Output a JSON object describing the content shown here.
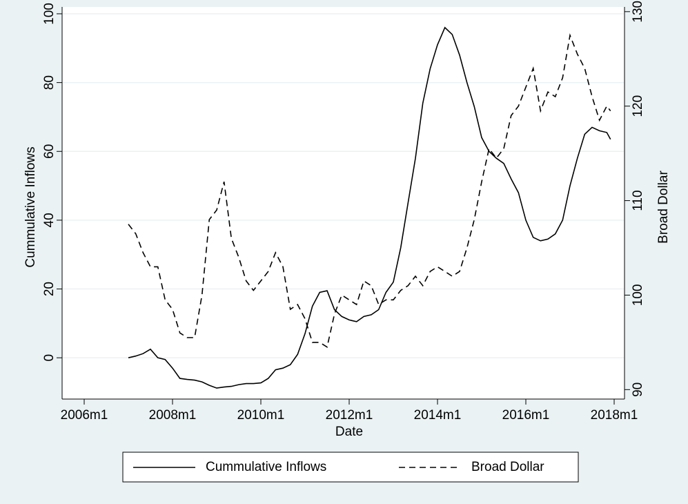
{
  "chart_data": {
    "type": "line",
    "xlabel": "Date",
    "ylabel": "Cummulative Inflows",
    "y2label": "Broad Dollar",
    "x": [
      "2007m1",
      "2007m3",
      "2007m5",
      "2007m7",
      "2007m9",
      "2007m11",
      "2008m1",
      "2008m3",
      "2008m5",
      "2008m7",
      "2008m9",
      "2008m11",
      "2009m1",
      "2009m3",
      "2009m5",
      "2009m7",
      "2009m9",
      "2009m11",
      "2010m1",
      "2010m3",
      "2010m5",
      "2010m7",
      "2010m9",
      "2010m11",
      "2011m1",
      "2011m3",
      "2011m5",
      "2011m7",
      "2011m9",
      "2011m11",
      "2012m1",
      "2012m3",
      "2012m5",
      "2012m7",
      "2012m9",
      "2012m11",
      "2013m1",
      "2013m3",
      "2013m5",
      "2013m7",
      "2013m9",
      "2013m11",
      "2014m1",
      "2014m3",
      "2014m5",
      "2014m7",
      "2014m9",
      "2014m11",
      "2015m1",
      "2015m3",
      "2015m5",
      "2015m7",
      "2015m9",
      "2015m11",
      "2016m1",
      "2016m3",
      "2016m5",
      "2016m7",
      "2016m9",
      "2016m11",
      "2017m1",
      "2017m3",
      "2017m5",
      "2017m7",
      "2017m9",
      "2017m11",
      "2017m12"
    ],
    "series": [
      {
        "name": "Cummulative Inflows",
        "color": "#000000",
        "dash": "solid",
        "axis": "y",
        "values": [
          0,
          0.5,
          1.2,
          2.5,
          0,
          -0.5,
          -3,
          -6,
          -6.3,
          -6.5,
          -7,
          -8,
          -8.8,
          -8.5,
          -8.3,
          -7.8,
          -7.5,
          -7.5,
          -7.3,
          -6,
          -3.5,
          -3,
          -2,
          1,
          7,
          15,
          19,
          19.5,
          14,
          12,
          11,
          10.5,
          12,
          12.5,
          14,
          19,
          22,
          32,
          45,
          58,
          74,
          84,
          91,
          96,
          94,
          88,
          80,
          73,
          64,
          60,
          58,
          56.5,
          52,
          48,
          40,
          35,
          34,
          34.5,
          36,
          40,
          50,
          58,
          65,
          67,
          66,
          65.5,
          63.5
        ]
      },
      {
        "name": "Broad Dollar",
        "color": "#000000",
        "dash": "dashed",
        "axis": "y2",
        "values": [
          107.5,
          106.5,
          104.5,
          103,
          103,
          99.5,
          98.5,
          96,
          95.5,
          95.5,
          100,
          108,
          109,
          112,
          106,
          104,
          101.5,
          100.5,
          101.5,
          102.5,
          104.5,
          103,
          98.5,
          99,
          97.5,
          95,
          95,
          94.5,
          98,
          100,
          99.5,
          99,
          101.5,
          101,
          99,
          99.5,
          99.5,
          100.5,
          101,
          102,
          101,
          102.5,
          103,
          102.5,
          102,
          102.5,
          105,
          108,
          112,
          115.5,
          114.5,
          115.5,
          119,
          120,
          122,
          124,
          119.5,
          121.5,
          121,
          123,
          127.5,
          125.5,
          124,
          121,
          118.5,
          120,
          119.5
        ]
      }
    ],
    "xlim": [
      "2006m1",
      "2018m1"
    ],
    "xticks": [
      "2006m1",
      "2008m1",
      "2010m1",
      "2012m1",
      "2014m1",
      "2016m1",
      "2018m1"
    ],
    "ylim": [
      -12,
      102
    ],
    "yticks": [
      0,
      20,
      40,
      60,
      80,
      100
    ],
    "y2lim": [
      89,
      130.5
    ],
    "y2ticks": [
      90,
      100,
      110,
      120,
      130
    ],
    "grid": true,
    "legend": "bottom"
  }
}
